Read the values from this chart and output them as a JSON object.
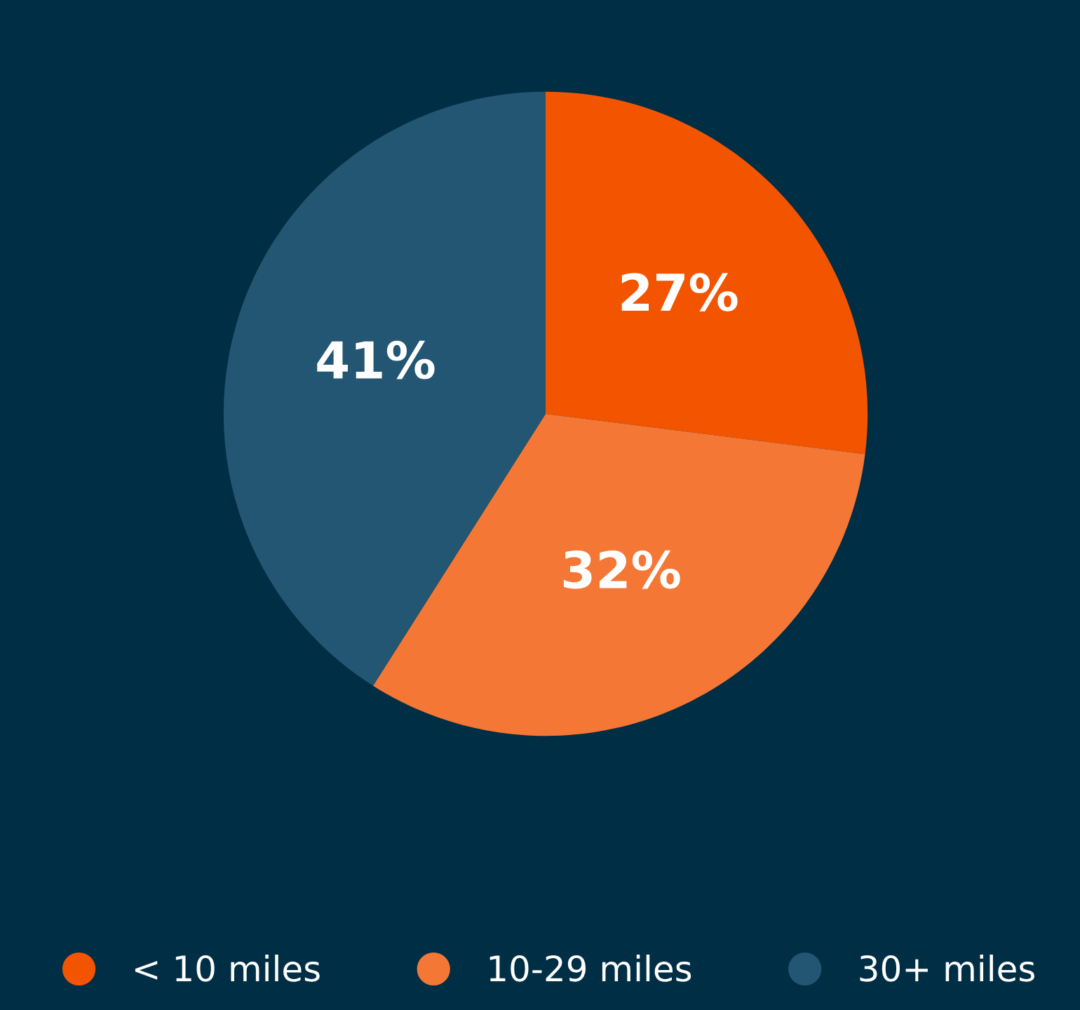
{
  "chart_data": {
    "type": "pie",
    "categories": [
      "< 10 miles",
      "10-29 miles",
      "30+ miles"
    ],
    "values": [
      27,
      32,
      41
    ],
    "colors": [
      "#f35400",
      "#f47735",
      "#235673"
    ],
    "value_labels": [
      "27%",
      "32%",
      "41%"
    ],
    "legend": "bottom"
  }
}
